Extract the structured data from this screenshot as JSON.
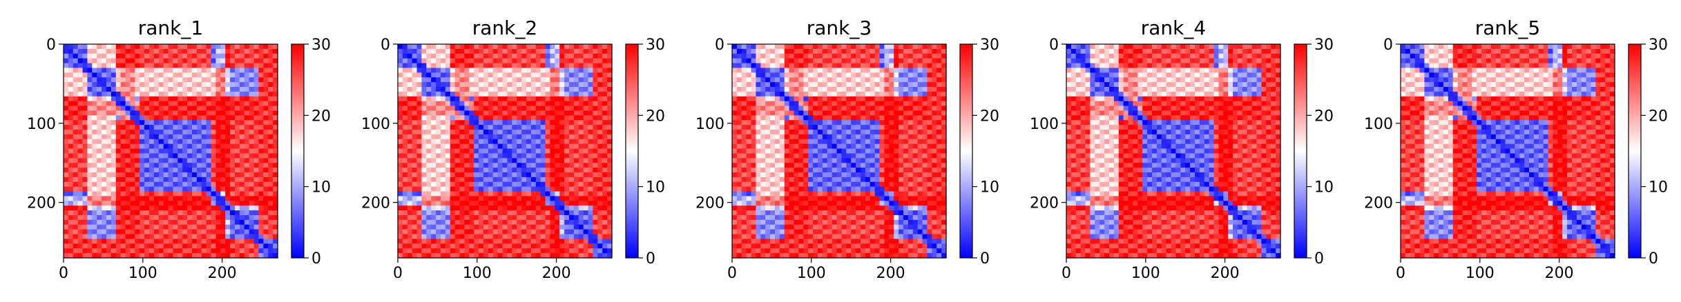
{
  "chart_data": [
    {
      "type": "heatmap",
      "title": "rank_1",
      "x_range": [
        0,
        270
      ],
      "y_range": [
        0,
        270
      ],
      "x_ticks": [
        0,
        100,
        200
      ],
      "y_ticks": [
        0,
        100,
        200
      ],
      "colorbar": {
        "min": 0,
        "max": 30,
        "ticks": [
          0,
          10,
          20,
          30
        ],
        "colormap": "bwr"
      }
    },
    {
      "type": "heatmap",
      "title": "rank_2",
      "x_range": [
        0,
        270
      ],
      "y_range": [
        0,
        270
      ],
      "x_ticks": [
        0,
        100,
        200
      ],
      "y_ticks": [
        0,
        100,
        200
      ],
      "colorbar": {
        "min": 0,
        "max": 30,
        "ticks": [
          0,
          10,
          20,
          30
        ],
        "colormap": "bwr"
      }
    },
    {
      "type": "heatmap",
      "title": "rank_3",
      "x_range": [
        0,
        270
      ],
      "y_range": [
        0,
        270
      ],
      "x_ticks": [
        0,
        100,
        200
      ],
      "y_ticks": [
        0,
        100,
        200
      ],
      "colorbar": {
        "min": 0,
        "max": 30,
        "ticks": [
          0,
          10,
          20,
          30
        ],
        "colormap": "bwr"
      }
    },
    {
      "type": "heatmap",
      "title": "rank_4",
      "x_range": [
        0,
        270
      ],
      "y_range": [
        0,
        270
      ],
      "x_ticks": [
        0,
        100,
        200
      ],
      "y_ticks": [
        0,
        100,
        200
      ],
      "colorbar": {
        "min": 0,
        "max": 30,
        "ticks": [
          0,
          10,
          20,
          30
        ],
        "colormap": "bwr"
      }
    },
    {
      "type": "heatmap",
      "title": "rank_5",
      "x_range": [
        0,
        270
      ],
      "y_range": [
        0,
        270
      ],
      "x_ticks": [
        0,
        100,
        200
      ],
      "y_ticks": [
        0,
        100,
        200
      ],
      "colorbar": {
        "min": 0,
        "max": 30,
        "ticks": [
          0,
          10,
          20,
          30
        ],
        "colormap": "bwr"
      }
    }
  ]
}
